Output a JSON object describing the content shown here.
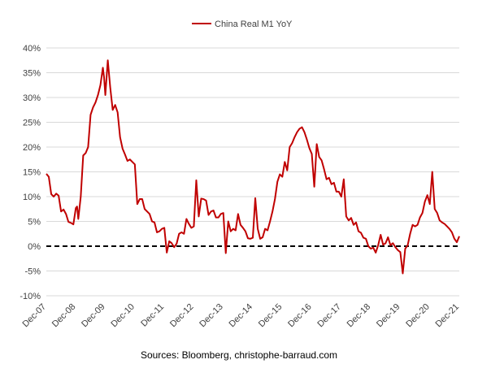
{
  "chart_data": {
    "type": "line",
    "legend": {
      "position": "top-center"
    },
    "ylim": [
      -10,
      40
    ],
    "yticks": [
      -10,
      -5,
      0,
      5,
      10,
      15,
      20,
      25,
      30,
      35,
      40
    ],
    "ytick_labels": [
      "-10%",
      "-5%",
      "0%",
      "5%",
      "10%",
      "15%",
      "20%",
      "25%",
      "30%",
      "35%",
      "40%"
    ],
    "xlim": [
      "2007-12",
      "2021-12"
    ],
    "xticks": [
      "2007-12",
      "2008-12",
      "2009-12",
      "2010-12",
      "2011-12",
      "2012-12",
      "2013-12",
      "2014-12",
      "2015-12",
      "2016-12",
      "2017-12",
      "2018-12",
      "2019-12",
      "2020-12",
      "2021-12"
    ],
    "xtick_labels": [
      "Dec-07",
      "Dec-08",
      "Dec-09",
      "Dec-10",
      "Dec-11",
      "Dec-12",
      "Dec-13",
      "Dec-14",
      "Dec-15",
      "Dec-16",
      "Dec-17",
      "Dec-18",
      "Dec-19",
      "Dec-20",
      "Dec-21"
    ],
    "reference_line": {
      "y": 0,
      "style": "dashed",
      "color": "#000000"
    },
    "grid": "horizontal",
    "series": [
      {
        "name": "China Real M1 YoY",
        "color": "#c00000",
        "points": [
          [
            "2007-12",
            14.6
          ],
          [
            "2008-01",
            14.0
          ],
          [
            "2008-02",
            10.5
          ],
          [
            "2008-03",
            10.0
          ],
          [
            "2008-04",
            10.6
          ],
          [
            "2008-05",
            10.2
          ],
          [
            "2008-06",
            7.0
          ],
          [
            "2008-07",
            7.4
          ],
          [
            "2008-08",
            6.5
          ],
          [
            "2008-09",
            4.9
          ],
          [
            "2008-10",
            4.7
          ],
          [
            "2008-11",
            4.4
          ],
          [
            "2008-12",
            7.7
          ],
          [
            "2008-12",
            8.0
          ],
          [
            "2009-01",
            5.5
          ],
          [
            "2009-02",
            10.0
          ],
          [
            "2009-03",
            18.3
          ],
          [
            "2009-04",
            18.8
          ],
          [
            "2009-05",
            20.0
          ],
          [
            "2009-06",
            26.5
          ],
          [
            "2009-07",
            28.0
          ],
          [
            "2009-08",
            29.0
          ],
          [
            "2009-09",
            30.5
          ],
          [
            "2009-10",
            32.5
          ],
          [
            "2009-11",
            36.0
          ],
          [
            "2009-11",
            34.0
          ],
          [
            "2009-12",
            30.5
          ],
          [
            "2010-01",
            37.5
          ],
          [
            "2010-02",
            32.0
          ],
          [
            "2010-03",
            27.5
          ],
          [
            "2010-04",
            28.5
          ],
          [
            "2010-05",
            27.0
          ],
          [
            "2010-06",
            22.0
          ],
          [
            "2010-07",
            19.7
          ],
          [
            "2010-08",
            18.5
          ],
          [
            "2010-09",
            17.2
          ],
          [
            "2010-10",
            17.5
          ],
          [
            "2010-11",
            17.0
          ],
          [
            "2010-12",
            16.5
          ],
          [
            "2011-01",
            8.5
          ],
          [
            "2011-02",
            9.5
          ],
          [
            "2011-03",
            9.5
          ],
          [
            "2011-04",
            7.5
          ],
          [
            "2011-05",
            7.0
          ],
          [
            "2011-06",
            6.5
          ],
          [
            "2011-07",
            5.0
          ],
          [
            "2011-08",
            4.8
          ],
          [
            "2011-09",
            2.8
          ],
          [
            "2011-10",
            3.0
          ],
          [
            "2011-11",
            3.5
          ],
          [
            "2011-12",
            3.7
          ],
          [
            "2012-01",
            -1.3
          ],
          [
            "2012-02",
            1.0
          ],
          [
            "2012-03",
            0.6
          ],
          [
            "2012-04",
            -0.2
          ],
          [
            "2012-05",
            0.5
          ],
          [
            "2012-06",
            2.5
          ],
          [
            "2012-07",
            2.8
          ],
          [
            "2012-08",
            2.5
          ],
          [
            "2012-09",
            5.5
          ],
          [
            "2012-10",
            4.5
          ],
          [
            "2012-11",
            3.7
          ],
          [
            "2012-12",
            4.0
          ],
          [
            "2013-01",
            13.3
          ],
          [
            "2013-02",
            6.0
          ],
          [
            "2013-03",
            9.6
          ],
          [
            "2013-04",
            9.5
          ],
          [
            "2013-05",
            9.2
          ],
          [
            "2013-06",
            6.3
          ],
          [
            "2013-07",
            7.0
          ],
          [
            "2013-08",
            7.2
          ],
          [
            "2013-09",
            5.8
          ],
          [
            "2013-10",
            5.8
          ],
          [
            "2013-11",
            6.5
          ],
          [
            "2013-12",
            6.7
          ],
          [
            "2014-01",
            -1.4
          ],
          [
            "2014-02",
            5.0
          ],
          [
            "2014-03",
            3.0
          ],
          [
            "2014-04",
            3.5
          ],
          [
            "2014-05",
            3.2
          ],
          [
            "2014-06",
            6.5
          ],
          [
            "2014-07",
            4.3
          ],
          [
            "2014-08",
            3.7
          ],
          [
            "2014-09",
            3.0
          ],
          [
            "2014-10",
            1.6
          ],
          [
            "2014-11",
            1.5
          ],
          [
            "2014-12",
            1.7
          ],
          [
            "2015-01",
            9.7
          ],
          [
            "2015-02",
            3.5
          ],
          [
            "2015-03",
            1.5
          ],
          [
            "2015-04",
            1.8
          ],
          [
            "2015-05",
            3.5
          ],
          [
            "2015-06",
            3.2
          ],
          [
            "2015-07",
            5.0
          ],
          [
            "2015-08",
            7.0
          ],
          [
            "2015-09",
            9.5
          ],
          [
            "2015-10",
            13.0
          ],
          [
            "2015-11",
            14.5
          ],
          [
            "2015-12",
            14.0
          ],
          [
            "2016-01",
            17.0
          ],
          [
            "2016-02",
            15.3
          ],
          [
            "2016-03",
            20.0
          ],
          [
            "2016-04",
            20.8
          ],
          [
            "2016-05",
            22.0
          ],
          [
            "2016-06",
            23.0
          ],
          [
            "2016-07",
            23.7
          ],
          [
            "2016-08",
            24.0
          ],
          [
            "2016-09",
            23.0
          ],
          [
            "2016-10",
            21.5
          ],
          [
            "2016-11",
            19.8
          ],
          [
            "2016-12",
            18.6
          ],
          [
            "2017-01",
            12.0
          ],
          [
            "2017-02",
            20.6
          ],
          [
            "2017-03",
            18.0
          ],
          [
            "2017-04",
            17.3
          ],
          [
            "2017-05",
            15.5
          ],
          [
            "2017-06",
            13.5
          ],
          [
            "2017-07",
            13.8
          ],
          [
            "2017-08",
            12.5
          ],
          [
            "2017-09",
            12.8
          ],
          [
            "2017-10",
            11.0
          ],
          [
            "2017-11",
            11.0
          ],
          [
            "2017-12",
            10.0
          ],
          [
            "2018-01",
            13.5
          ],
          [
            "2018-02",
            6.0
          ],
          [
            "2018-03",
            5.2
          ],
          [
            "2018-04",
            5.7
          ],
          [
            "2018-05",
            4.3
          ],
          [
            "2018-06",
            4.8
          ],
          [
            "2018-07",
            3.0
          ],
          [
            "2018-08",
            2.7
          ],
          [
            "2018-09",
            1.7
          ],
          [
            "2018-10",
            1.5
          ],
          [
            "2018-11",
            0.0
          ],
          [
            "2018-12",
            -0.5
          ],
          [
            "2019-01",
            -0.3
          ],
          [
            "2019-02",
            -1.3
          ],
          [
            "2019-03",
            0.2
          ],
          [
            "2019-04",
            2.3
          ],
          [
            "2019-05",
            0.3
          ],
          [
            "2019-06",
            0.6
          ],
          [
            "2019-07",
            1.8
          ],
          [
            "2019-08",
            0.2
          ],
          [
            "2019-09",
            0.6
          ],
          [
            "2019-10",
            -0.2
          ],
          [
            "2019-11",
            -0.8
          ],
          [
            "2019-12",
            -1.2
          ],
          [
            "2020-01",
            -5.5
          ],
          [
            "2020-02",
            -0.5
          ],
          [
            "2020-03",
            0.2
          ],
          [
            "2020-04",
            2.5
          ],
          [
            "2020-05",
            4.3
          ],
          [
            "2020-06",
            4.0
          ],
          [
            "2020-07",
            4.3
          ],
          [
            "2020-08",
            5.8
          ],
          [
            "2020-09",
            6.7
          ],
          [
            "2020-10",
            9.0
          ],
          [
            "2020-11",
            10.3
          ],
          [
            "2020-12",
            8.5
          ],
          [
            "2021-01",
            15.0
          ],
          [
            "2021-02",
            7.5
          ],
          [
            "2021-03",
            6.7
          ],
          [
            "2021-04",
            5.2
          ],
          [
            "2021-05",
            4.8
          ],
          [
            "2021-06",
            4.5
          ],
          [
            "2021-07",
            4.0
          ],
          [
            "2021-08",
            3.5
          ],
          [
            "2021-09",
            2.8
          ],
          [
            "2021-10",
            1.5
          ],
          [
            "2021-11",
            0.8
          ],
          [
            "2021-12",
            2.0
          ]
        ]
      }
    ]
  },
  "source_text": "Sources: Bloomberg, christophe-barraud.com"
}
